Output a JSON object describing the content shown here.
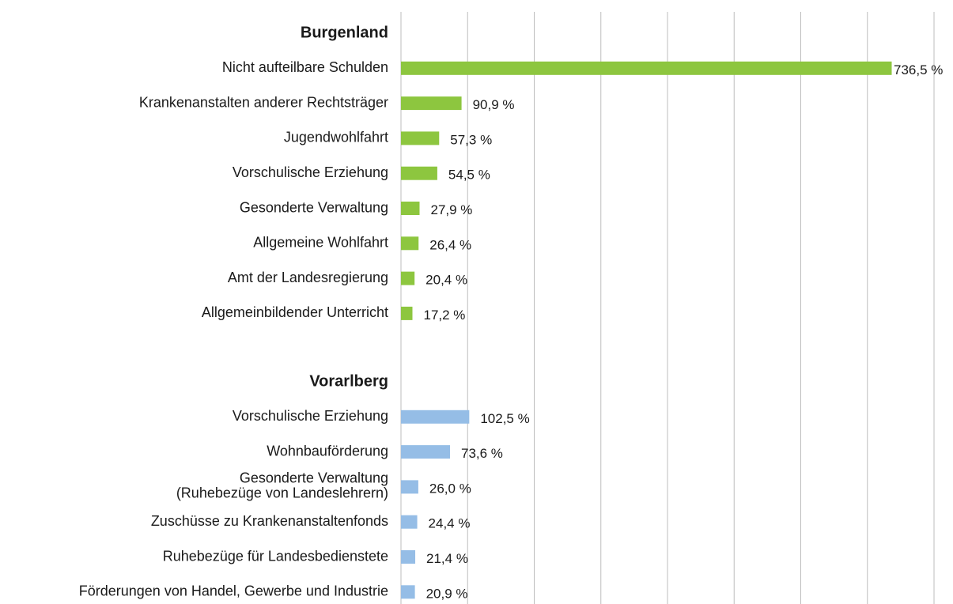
{
  "chart_data": {
    "type": "bar",
    "orientation": "horizontal",
    "xlim": [
      0,
      800
    ],
    "xticks": [
      0,
      100,
      200,
      300,
      400,
      500,
      600,
      700,
      800
    ],
    "grid": true,
    "groups": [
      {
        "name": "Burgenland",
        "color": "#8dc63f",
        "categories": [
          "Nicht aufteilbare Schulden",
          "Krankenanstalten anderer Rechtsträger",
          "Jugendwohlfahrt",
          "Vorschulische Erziehung",
          "Gesonderte Verwaltung",
          "Allgemeine Wohlfahrt",
          "Amt der Landesregierung",
          "Allgemeinbildender Unterricht"
        ],
        "values": [
          736.5,
          90.9,
          57.3,
          54.5,
          27.9,
          26.4,
          20.4,
          17.2
        ],
        "value_labels": [
          "736,5 %",
          "90,9 %",
          "57,3 %",
          "54,5 %",
          "27,9 %",
          "26,4 %",
          "20,4 %",
          "17,2 %"
        ]
      },
      {
        "name": "Vorarlberg",
        "color": "#95bde6",
        "categories": [
          "Vorschulische Erziehung",
          "Wohnbauförderung",
          [
            "Gesonderte Verwaltung",
            "(Ruhebezüge von Landeslehrern)"
          ],
          "Zuschüsse zu Krankenanstaltenfonds",
          "Ruhebezüge für Landesbedienstete",
          "Förderungen von Handel, Gewerbe und Industrie"
        ],
        "values": [
          102.5,
          73.6,
          26.0,
          24.4,
          21.4,
          20.9
        ],
        "value_labels": [
          "102,5 %",
          "73,6 %",
          "26,0 %",
          "24,4 %",
          "21,4 %",
          "20,9 %"
        ]
      }
    ]
  }
}
